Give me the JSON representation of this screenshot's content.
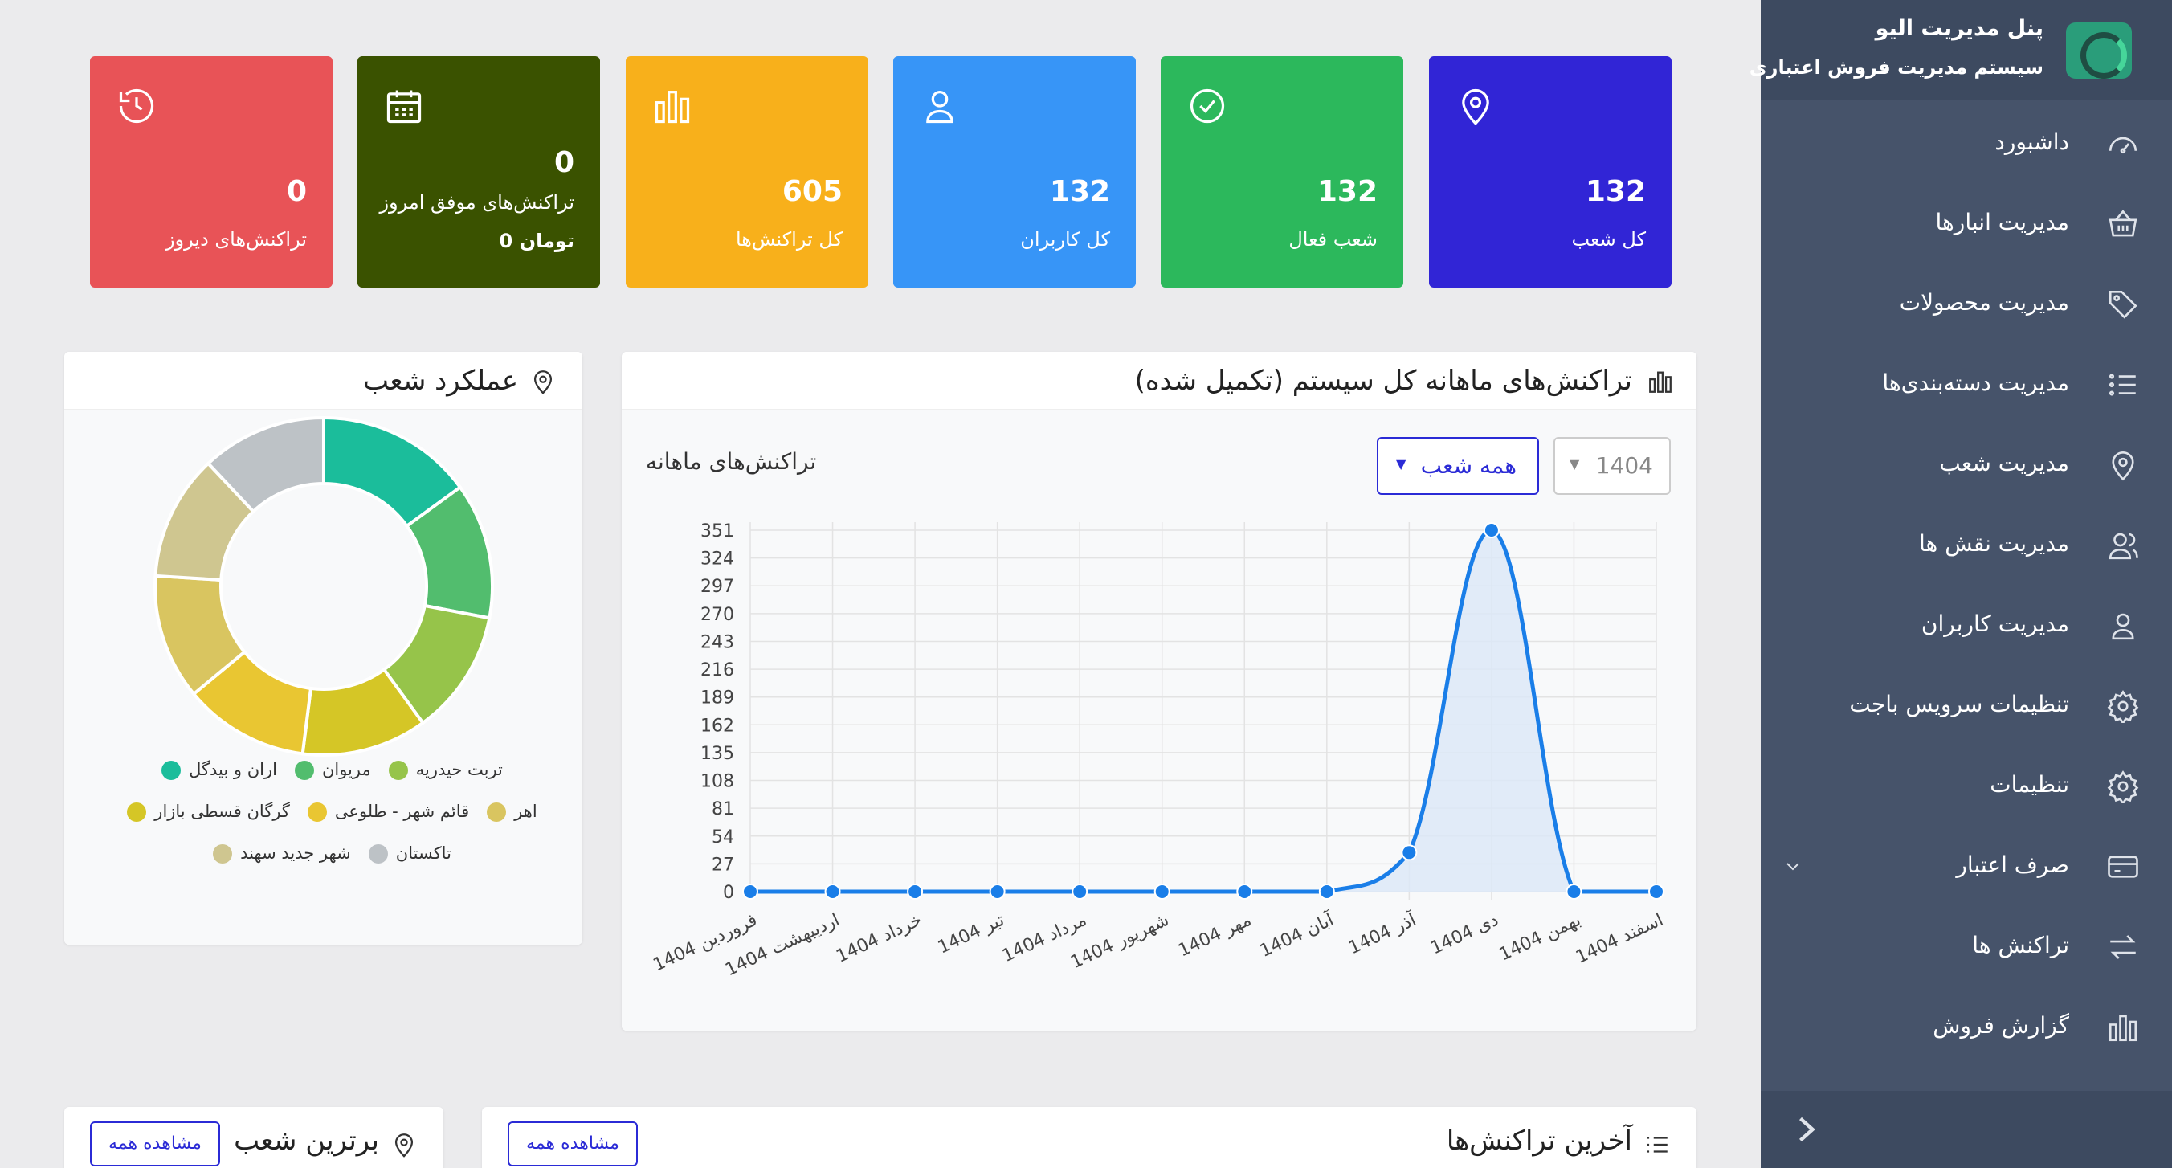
{
  "sidebar": {
    "title": "پنل مدیریت الیو",
    "subtitle": "سیستم مدیریت فروش اعتباری",
    "items": [
      {
        "label": "داشبورد",
        "icon": "dashboard-icon"
      },
      {
        "label": "مدیریت انبارها",
        "icon": "warehouse-basket-icon"
      },
      {
        "label": "مدیریت محصولات",
        "icon": "tag-icon"
      },
      {
        "label": "مدیریت دسته‌بندی‌ها",
        "icon": "list-icon"
      },
      {
        "label": "مدیریت شعب",
        "icon": "location-pin-icon"
      },
      {
        "label": "مدیریت نقش ها",
        "icon": "users-icon"
      },
      {
        "label": "مدیریت کاربران",
        "icon": "user-icon"
      },
      {
        "label": "تنظیمات سرویس باجت",
        "icon": "gear-icon"
      },
      {
        "label": "تنظیمات",
        "icon": "gear-icon"
      },
      {
        "label": "صرف اعتبار",
        "icon": "credit-card-icon"
      },
      {
        "label": "تراکنش ها",
        "icon": "transfer-arrows-icon"
      },
      {
        "label": "گزارش فروش",
        "icon": "bar-chart-icon"
      }
    ]
  },
  "cards": [
    {
      "value": "132",
      "label": "کل شعب",
      "color": "#3125d6",
      "icon": "location-pin-icon"
    },
    {
      "value": "132",
      "label": "شعب فعال",
      "color": "#2cb85c",
      "icon": "check-circle-icon"
    },
    {
      "value": "132",
      "label": "کل کاربران",
      "color": "#3795f7",
      "icon": "user-icon"
    },
    {
      "value": "605",
      "label": "کل تراکنش‌ها",
      "color": "#f8b01b",
      "icon": "bar-chart-icon"
    },
    {
      "value": "0",
      "label": "تراکنش‌های موفق امروز",
      "sub": "0 تومان",
      "color": "#3a5200",
      "icon": "calendar-icon"
    },
    {
      "value": "0",
      "label": "تراکنش‌های دیروز",
      "color": "#e85357",
      "icon": "history-icon"
    }
  ],
  "monthly_panel": {
    "title": "تراکنش‌های ماهانه کل سیستم (تکمیل شده)",
    "subtitle": "تراکنش‌های ماهانه",
    "year_select": "1404",
    "branch_select": "همه شعب"
  },
  "branches_panel": {
    "title": "عملکرد شعب"
  },
  "recent_panel": {
    "title": "آخرین تراکنش‌ها",
    "view_all": "مشاهده همه"
  },
  "top_panel": {
    "title": "برترین شعب",
    "view_all": "مشاهده همه"
  },
  "chart_data": [
    {
      "type": "line",
      "title": "تراکنش‌های ماهانه",
      "categories": [
        "فروردین 1404",
        "اردیبهشت 1404",
        "خرداد 1404",
        "تیر 1404",
        "مرداد 1404",
        "شهریور 1404",
        "مهر 1404",
        "آبان 1404",
        "آذر 1404",
        "دی 1404",
        "بهمن 1404",
        "اسفند 1404"
      ],
      "values": [
        0,
        0,
        0,
        0,
        0,
        0,
        0,
        0,
        38,
        351,
        0,
        0
      ],
      "yticks": [
        0,
        27,
        54,
        81,
        108,
        135,
        162,
        189,
        216,
        243,
        270,
        297,
        324,
        351
      ],
      "ylim": [
        0,
        351
      ],
      "grid": true,
      "color": "#1a7ee8",
      "fill": "#dbe7f8"
    },
    {
      "type": "pie",
      "donut": true,
      "categories": [
        "اران و بیدگل",
        "مریوان",
        "تربت حیدریه",
        "گرگان قسطی بازار",
        "قائم شهر - طلوعی",
        "اهر",
        "شهر جدید سهند",
        "تاکستان"
      ],
      "values": [
        15,
        13,
        12,
        12,
        12,
        12,
        12,
        12
      ],
      "colors": [
        "#1bbd9b",
        "#52bd6e",
        "#96c44a",
        "#d5c626",
        "#e9c632",
        "#d9c560",
        "#cfc690",
        "#bdc2c6"
      ],
      "legend_position": "bottom"
    }
  ]
}
